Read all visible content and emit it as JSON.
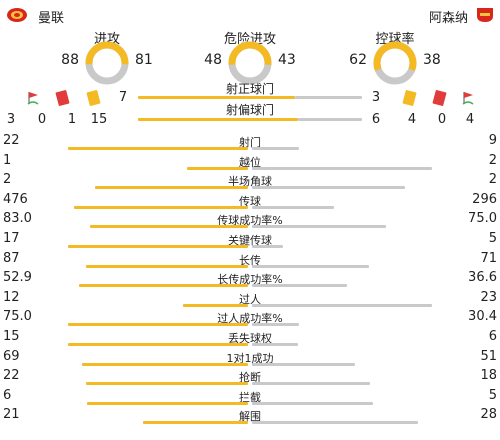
{
  "home": {
    "name": "曼联"
  },
  "away": {
    "name": "阿森纳"
  },
  "donuts": [
    {
      "title": "进攻",
      "home": 88,
      "away": 81
    },
    {
      "title": "危险进攻",
      "home": 48,
      "away": 43
    },
    {
      "title": "控球率",
      "home": 62,
      "away": 38
    }
  ],
  "shots_on": {
    "label": "射正球门",
    "home": "7",
    "away": "3",
    "home_fraction": 0.7
  },
  "shots_off": {
    "label": "射偏球门",
    "home": "15",
    "away": "6",
    "home_fraction": 0.714
  },
  "cards_home": {
    "corner": "3",
    "red": "0",
    "yellow": "1"
  },
  "cards_away": {
    "yellow": "4",
    "red": "0",
    "corner": "4"
  },
  "stats": [
    {
      "label": "射门",
      "home": "22",
      "away": "9",
      "hv": 22,
      "av": 9
    },
    {
      "label": "越位",
      "home": "1",
      "away": "2",
      "hv": 1,
      "av": 2
    },
    {
      "label": "半场角球",
      "home": "2",
      "away": "2",
      "hv": 2,
      "av": 2
    },
    {
      "label": "传球",
      "home": "476",
      "away": "296",
      "hv": 476,
      "av": 296
    },
    {
      "label": "传球成功率%",
      "home": "83.0",
      "away": "75.0",
      "hv": 83.0,
      "av": 75.0
    },
    {
      "label": "关键传球",
      "home": "17",
      "away": "5",
      "hv": 17,
      "av": 5
    },
    {
      "label": "长传",
      "home": "87",
      "away": "71",
      "hv": 87,
      "av": 71
    },
    {
      "label": "长传成功率%",
      "home": "52.9",
      "away": "36.6",
      "hv": 52.9,
      "av": 36.6
    },
    {
      "label": "过人",
      "home": "12",
      "away": "23",
      "hv": 12,
      "av": 23
    },
    {
      "label": "过人成功率%",
      "home": "75.0",
      "away": "30.4",
      "hv": 75.0,
      "av": 30.4
    },
    {
      "label": "丢失球权",
      "home": "15",
      "away": "6",
      "hv": 15,
      "av": 6
    },
    {
      "label": "1对1成功",
      "home": "69",
      "away": "51",
      "hv": 69,
      "av": 51
    },
    {
      "label": "抢断",
      "home": "22",
      "away": "18",
      "hv": 22,
      "av": 18
    },
    {
      "label": "拦截",
      "home": "6",
      "away": "5",
      "hv": 6,
      "av": 5
    },
    {
      "label": "解围",
      "home": "21",
      "away": "28",
      "hv": 21,
      "av": 28
    }
  ],
  "colors": {
    "home": "#f3ba24",
    "away": "#c9c9c9",
    "red_card": "#e23b3b",
    "yellow_card": "#f3ba24",
    "corner_flag": "#e23b3b"
  }
}
